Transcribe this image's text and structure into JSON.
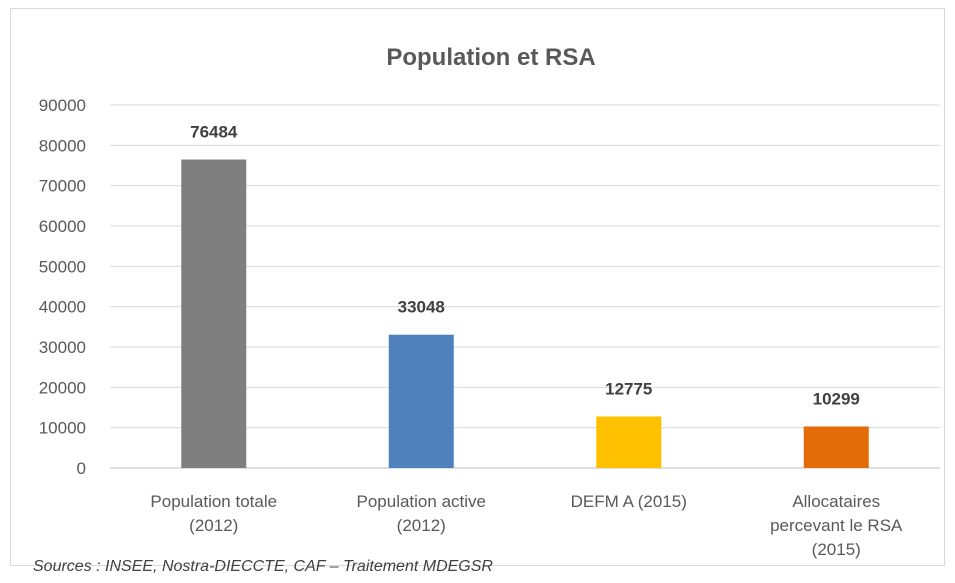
{
  "chart_data": {
    "type": "bar",
    "title": "Population et RSA",
    "categories": [
      [
        "Population totale",
        "(2012)"
      ],
      [
        "Population active",
        "(2012)"
      ],
      [
        "DEFM A (2015)"
      ],
      [
        "Allocataires",
        "percevant le RSA",
        "(2015)"
      ]
    ],
    "values": [
      76484,
      33048,
      12775,
      10299
    ],
    "data_labels": [
      "76484",
      "33048",
      "12775",
      "10299"
    ],
    "colors": [
      "#7f7f7f",
      "#4f81bd",
      "#ffc000",
      "#e36c09"
    ],
    "yticks": [
      "0",
      "10000",
      "20000",
      "30000",
      "40000",
      "50000",
      "60000",
      "70000",
      "80000",
      "90000"
    ],
    "ylim": [
      0,
      90000
    ],
    "grid": true,
    "legend": "none"
  },
  "source": "Sources : INSEE, Nostra-DIECCTE, CAF – Traitement MDEGSR"
}
